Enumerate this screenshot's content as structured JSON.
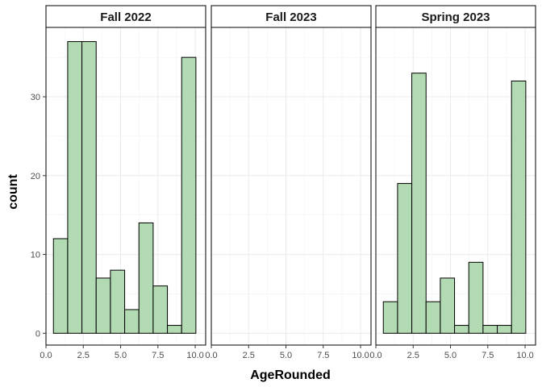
{
  "chart_data": {
    "type": "bar",
    "subtype": "faceted-histogram",
    "xlabel": "AgeRounded",
    "ylabel": "count",
    "xlim": [
      0,
      10.7
    ],
    "ylim": [
      -1.5,
      38.8
    ],
    "x_ticks": [
      0,
      2.5,
      5,
      7.5,
      10
    ],
    "x_tick_labels": [
      "0.0",
      "2.5",
      "5.0",
      "7.5",
      "10.0"
    ],
    "y_ticks": [
      0,
      10,
      20,
      30
    ],
    "y_tick_labels": [
      "0",
      "10",
      "20",
      "30"
    ],
    "bin_width": 0.9545,
    "bin_start": 0.5,
    "grid": true,
    "colors": {
      "bar_fill": "#b3dbb3",
      "bar_stroke": "#000000",
      "panel_border": "#000000",
      "grid": "#ebebeb"
    },
    "panels": [
      {
        "title": "Fall 2022",
        "values": [
          12,
          37,
          37,
          7,
          8,
          3,
          14,
          6,
          1,
          35
        ]
      },
      {
        "title": "Fall 2023",
        "values": []
      },
      {
        "title": "Spring 2023",
        "values": [
          4,
          19,
          33,
          4,
          7,
          1,
          9,
          1,
          1,
          32
        ]
      }
    ]
  }
}
